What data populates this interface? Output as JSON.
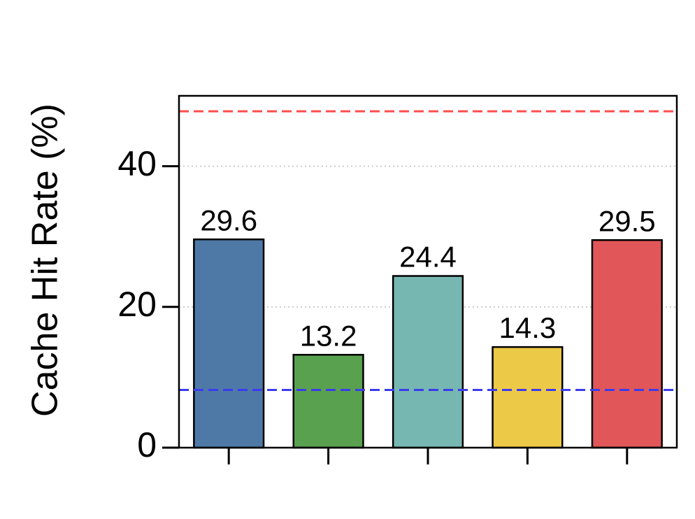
{
  "chart_data": {
    "type": "bar",
    "y_label": "Cache Hit Rate (%)",
    "categories": [
      null,
      null,
      null,
      null,
      null
    ],
    "values": [
      29.6,
      13.2,
      24.4,
      14.3,
      29.5
    ],
    "colors": [
      "#4e79a7",
      "#59a14f",
      "#76b7b2",
      "#edc948",
      "#e15759"
    ],
    "ylim": [
      0,
      50
    ],
    "yticks": [
      0,
      20,
      40
    ],
    "grid": true,
    "reference_lines": [
      {
        "value": 47.8,
        "color": "#ff4d4d"
      },
      {
        "value": 8.2,
        "color": "#3b3bef"
      }
    ]
  }
}
